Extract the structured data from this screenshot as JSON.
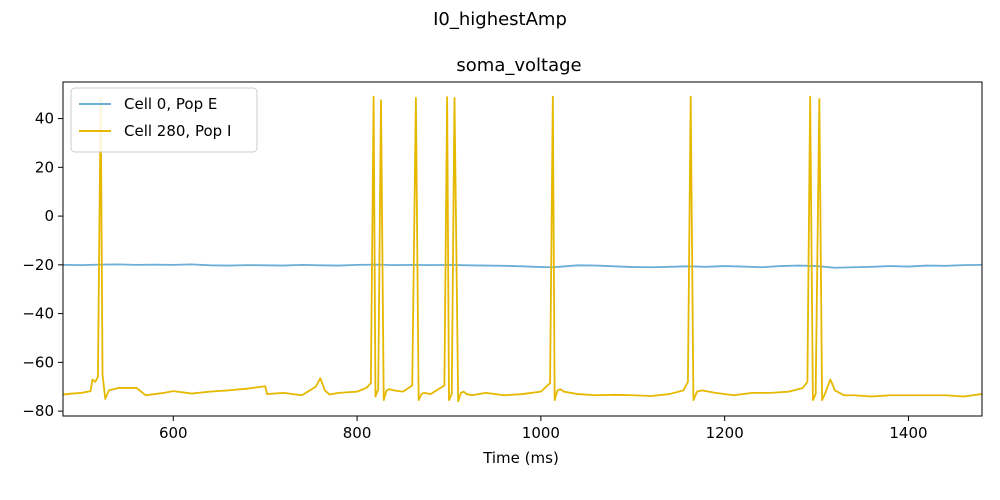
{
  "figure_title": "I0_highestAmp",
  "chart_data": {
    "type": "line",
    "title": "soma_voltage",
    "xlabel": "Time (ms)",
    "ylabel": "",
    "xlim": [
      480,
      1480
    ],
    "ylim": [
      -82,
      55
    ],
    "xticks": [
      600,
      800,
      1000,
      1200,
      1400
    ],
    "yticks": [
      -80,
      -60,
      -40,
      -20,
      0,
      20,
      40
    ],
    "grid": false,
    "legend_position": "top-left",
    "series": [
      {
        "name": "Cell 0, Pop E",
        "color": "#6baed6",
        "x": [
          480,
          500,
          520,
          540,
          560,
          580,
          600,
          620,
          640,
          660,
          680,
          700,
          720,
          740,
          760,
          780,
          800,
          820,
          840,
          860,
          880,
          900,
          920,
          940,
          960,
          980,
          1000,
          1010,
          1020,
          1040,
          1060,
          1080,
          1100,
          1120,
          1140,
          1160,
          1180,
          1200,
          1220,
          1240,
          1260,
          1280,
          1300,
          1320,
          1340,
          1360,
          1380,
          1400,
          1420,
          1440,
          1460,
          1480
        ],
        "y": [
          -20.0,
          -20.1,
          -19.9,
          -19.8,
          -20.0,
          -19.9,
          -20.0,
          -19.8,
          -20.2,
          -20.3,
          -20.1,
          -20.2,
          -20.3,
          -20.0,
          -20.2,
          -20.3,
          -20.0,
          -19.9,
          -20.1,
          -20.0,
          -20.1,
          -20.0,
          -20.2,
          -20.3,
          -20.4,
          -20.6,
          -20.9,
          -21.0,
          -20.8,
          -20.2,
          -20.3,
          -20.6,
          -20.9,
          -21.0,
          -20.8,
          -20.6,
          -20.8,
          -20.5,
          -20.7,
          -21.0,
          -20.5,
          -20.3,
          -20.5,
          -21.2,
          -21.0,
          -20.8,
          -20.5,
          -20.7,
          -20.3,
          -20.4,
          -20.1,
          -20.0
        ]
      },
      {
        "name": "Cell 280, Pop I",
        "color": "#e6b800",
        "x": [
          480,
          490,
          500,
          510,
          512,
          515,
          518,
          521,
          523,
          526,
          530,
          540,
          560,
          570,
          580,
          590,
          600,
          620,
          640,
          660,
          680,
          700,
          702,
          720,
          740,
          755,
          760,
          765,
          770,
          780,
          800,
          810,
          815,
          818,
          820,
          823,
          826,
          829,
          832,
          835,
          840,
          850,
          860,
          864,
          867,
          870,
          873,
          880,
          895,
          898,
          900,
          903,
          906,
          910,
          913,
          916,
          919,
          925,
          940,
          960,
          980,
          1000,
          1010,
          1013,
          1015,
          1018,
          1021,
          1025,
          1040,
          1060,
          1080,
          1100,
          1120,
          1140,
          1155,
          1160,
          1163,
          1166,
          1170,
          1175,
          1190,
          1210,
          1230,
          1250,
          1270,
          1285,
          1290,
          1293,
          1296,
          1299,
          1303,
          1306,
          1309,
          1312,
          1315,
          1320,
          1330,
          1340,
          1360,
          1380,
          1400,
          1420,
          1440,
          1460,
          1480
        ],
        "y": [
          -73.2,
          -72.8,
          -72.5,
          -71.8,
          -67.0,
          -68.0,
          -66.0,
          48.5,
          -65.0,
          -75.0,
          -71.5,
          -70.5,
          -70.5,
          -73.5,
          -73.0,
          -72.5,
          -71.8,
          -72.8,
          -72.0,
          -71.5,
          -70.8,
          -69.8,
          -73.0,
          -72.5,
          -73.5,
          -70.0,
          -66.5,
          -71.5,
          -73.2,
          -72.5,
          -72.0,
          -70.5,
          -68.5,
          49.0,
          -74.0,
          -71.0,
          47.5,
          -75.5,
          -71.5,
          -71.0,
          -71.5,
          -72.0,
          -69.5,
          48.5,
          -75.5,
          -73.0,
          -72.5,
          -73.0,
          -69.5,
          48.8,
          -75.5,
          -73.0,
          48.5,
          -76.0,
          -72.5,
          -72.0,
          -73.0,
          -73.5,
          -72.5,
          -73.5,
          -73.0,
          -72.0,
          -68.5,
          49.0,
          -75.5,
          -71.5,
          -71.0,
          -72.0,
          -73.0,
          -73.5,
          -73.3,
          -73.5,
          -73.8,
          -73.0,
          -71.5,
          -68.0,
          49.0,
          -75.5,
          -72.0,
          -71.5,
          -72.5,
          -73.5,
          -72.5,
          -72.5,
          -72.0,
          -70.5,
          -68.0,
          49.0,
          -75.5,
          -73.0,
          48.0,
          -75.5,
          -73.0,
          -70.0,
          -67.0,
          -71.5,
          -73.5,
          -73.5,
          -74.0,
          -73.5,
          -73.5,
          -73.5,
          -73.5,
          -74.0,
          -73.0
        ]
      }
    ]
  }
}
